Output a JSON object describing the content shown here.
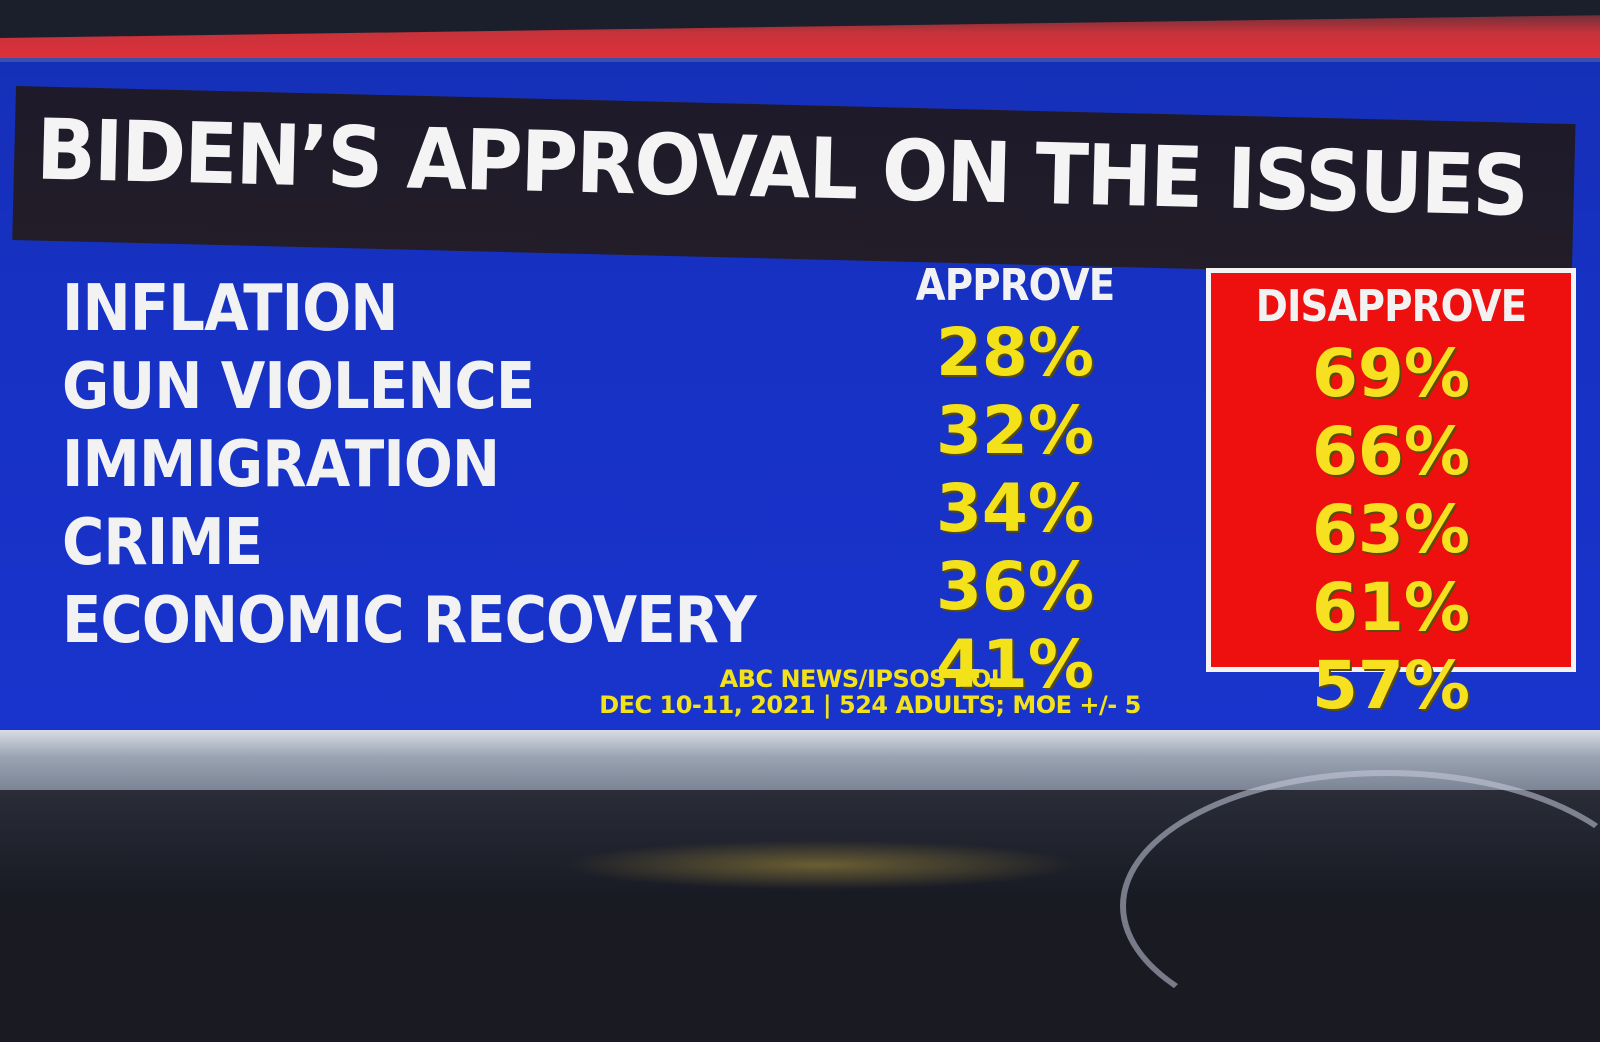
{
  "title": "BIDEN’S APPROVAL ON THE ISSUES",
  "columns": {
    "approve": "APPROVE",
    "disapprove": "DISAPPROVE"
  },
  "rows": [
    {
      "issue": "INFLATION",
      "approve": "28%",
      "disapprove": "69%"
    },
    {
      "issue": "GUN VIOLENCE",
      "approve": "32%",
      "disapprove": "66%"
    },
    {
      "issue": "IMMIGRATION",
      "approve": "34%",
      "disapprove": "63%"
    },
    {
      "issue": "CRIME",
      "approve": "36%",
      "disapprove": "61%"
    },
    {
      "issue": "ECONOMIC RECOVERY",
      "approve": "41%",
      "disapprove": "57%"
    }
  ],
  "source": {
    "line1": "ABC NEWS/IPSOS POLL",
    "line2": "DEC 10-11, 2021 | 524 ADULTS; MOE +/- 5"
  },
  "colors": {
    "background": "#1731c4",
    "title_bar": "#221d28",
    "values": "#f3e21a",
    "disapprove_box": "#ee0f0f",
    "text": "#f2f2f2"
  }
}
